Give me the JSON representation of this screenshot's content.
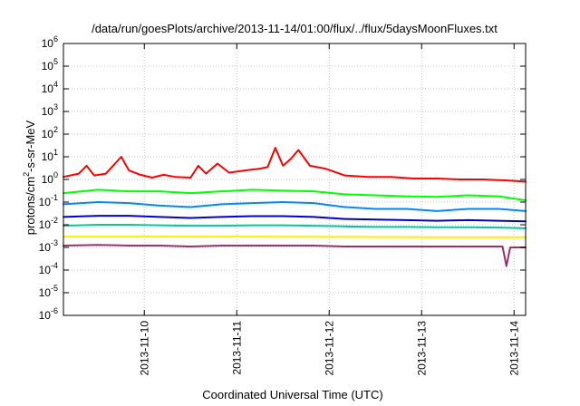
{
  "chart_data": {
    "type": "line",
    "title": "/data/run/goesPlots/archive/2013-11-14/01:00/flux/../flux/5daysMoonFluxes.txt",
    "xlabel": "Coordinated Universal Time (UTC)",
    "ylabel": "protons/cm2-s-sr-MeV",
    "ylabel_parts": {
      "pre": "protons/cm",
      "sup": "2",
      "post": "-s-sr-MeV"
    },
    "yscale": "log",
    "ylim": [
      1e-06,
      1000000.0
    ],
    "xlim": [
      "2013-11-09T03:00",
      "2013-11-14T03:00"
    ],
    "grid": true,
    "x_ticks": [
      {
        "value": "2013-11-10T00:00",
        "label": "2013-11-10"
      },
      {
        "value": "2013-11-11T00:00",
        "label": "2013-11-11"
      },
      {
        "value": "2013-11-12T00:00",
        "label": "2013-11-12"
      },
      {
        "value": "2013-11-13T00:00",
        "label": "2013-11-13"
      },
      {
        "value": "2013-11-14T00:00",
        "label": "2013-11-14"
      }
    ],
    "y_ticks": [
      {
        "value": 1e-06,
        "base": "10",
        "exp": "-6"
      },
      {
        "value": 1e-05,
        "base": "10",
        "exp": "-5"
      },
      {
        "value": 0.0001,
        "base": "10",
        "exp": "-4"
      },
      {
        "value": 0.001,
        "base": "10",
        "exp": "-3"
      },
      {
        "value": 0.01,
        "base": "10",
        "exp": "-2"
      },
      {
        "value": 0.1,
        "base": "10",
        "exp": "-1"
      },
      {
        "value": 1,
        "base": "10",
        "exp": "0"
      },
      {
        "value": 10.0,
        "base": "10",
        "exp": "1"
      },
      {
        "value": 100.0,
        "base": "10",
        "exp": "2"
      },
      {
        "value": 1000.0,
        "base": "10",
        "exp": "3"
      },
      {
        "value": 10000.0,
        "base": "10",
        "exp": "4"
      },
      {
        "value": 100000.0,
        "base": "10",
        "exp": "5"
      },
      {
        "value": 1000000.0,
        "base": "10",
        "exp": "6"
      }
    ],
    "series": [
      {
        "color": "#ff0000",
        "x": [
          "2013-11-09T03:00",
          "2013-11-09T07:00",
          "2013-11-09T09:00",
          "2013-11-09T11:00",
          "2013-11-09T14:00",
          "2013-11-09T18:00",
          "2013-11-09T20:00",
          "2013-11-09T23:00",
          "2013-11-10T02:00",
          "2013-11-10T05:00",
          "2013-11-10T08:00",
          "2013-11-10T12:00",
          "2013-11-10T14:00",
          "2013-11-10T16:00",
          "2013-11-10T19:00",
          "2013-11-10T22:00",
          "2013-11-11T02:00",
          "2013-11-11T06:00",
          "2013-11-11T08:00",
          "2013-11-11T10:00",
          "2013-11-11T12:00",
          "2013-11-11T14:00",
          "2013-11-11T16:00",
          "2013-11-11T19:00",
          "2013-11-11T23:00",
          "2013-11-12T04:00",
          "2013-11-12T10:00",
          "2013-11-12T16:00",
          "2013-11-12T22:00",
          "2013-11-13T04:00",
          "2013-11-13T10:00",
          "2013-11-13T16:00",
          "2013-11-13T22:00",
          "2013-11-14T03:00"
        ],
        "y": [
          1.3,
          1.8,
          4,
          1.5,
          1.8,
          10,
          2.5,
          1.6,
          1.2,
          1.6,
          1.3,
          1.2,
          4,
          1.8,
          5,
          2,
          2.5,
          3,
          3.5,
          25,
          4,
          8,
          20,
          4,
          3,
          1.5,
          1.3,
          1.3,
          1.1,
          1.1,
          1.0,
          1.0,
          0.9,
          0.8
        ]
      },
      {
        "color": "#00ff00",
        "x": [
          "2013-11-09T03:00",
          "2013-11-09T12:00",
          "2013-11-09T20:00",
          "2013-11-10T04:00",
          "2013-11-10T12:00",
          "2013-11-10T20:00",
          "2013-11-11T04:00",
          "2013-11-11T12:00",
          "2013-11-11T20:00",
          "2013-11-12T04:00",
          "2013-11-12T12:00",
          "2013-11-12T20:00",
          "2013-11-13T04:00",
          "2013-11-13T12:00",
          "2013-11-13T20:00",
          "2013-11-14T03:00"
        ],
        "y": [
          0.25,
          0.35,
          0.3,
          0.3,
          0.25,
          0.3,
          0.35,
          0.32,
          0.3,
          0.22,
          0.2,
          0.18,
          0.17,
          0.2,
          0.18,
          0.12
        ]
      },
      {
        "color": "#0088ff",
        "x": [
          "2013-11-09T03:00",
          "2013-11-09T12:00",
          "2013-11-09T20:00",
          "2013-11-10T04:00",
          "2013-11-10T12:00",
          "2013-11-10T20:00",
          "2013-11-11T04:00",
          "2013-11-11T12:00",
          "2013-11-11T20:00",
          "2013-11-12T04:00",
          "2013-11-12T12:00",
          "2013-11-12T20:00",
          "2013-11-13T04:00",
          "2013-11-13T12:00",
          "2013-11-13T20:00",
          "2013-11-14T03:00"
        ],
        "y": [
          0.08,
          0.1,
          0.09,
          0.07,
          0.06,
          0.08,
          0.09,
          0.1,
          0.09,
          0.06,
          0.05,
          0.05,
          0.04,
          0.05,
          0.05,
          0.04
        ]
      },
      {
        "color": "#0000cc",
        "x": [
          "2013-11-09T03:00",
          "2013-11-09T12:00",
          "2013-11-09T20:00",
          "2013-11-10T04:00",
          "2013-11-10T12:00",
          "2013-11-10T20:00",
          "2013-11-11T04:00",
          "2013-11-11T12:00",
          "2013-11-11T20:00",
          "2013-11-12T04:00",
          "2013-11-12T12:00",
          "2013-11-12T20:00",
          "2013-11-13T04:00",
          "2013-11-13T12:00",
          "2013-11-13T20:00",
          "2013-11-14T03:00"
        ],
        "y": [
          0.022,
          0.025,
          0.025,
          0.022,
          0.02,
          0.022,
          0.024,
          0.024,
          0.022,
          0.018,
          0.017,
          0.016,
          0.015,
          0.016,
          0.015,
          0.014
        ]
      },
      {
        "color": "#00c8a0",
        "x": [
          "2013-11-09T03:00",
          "2013-11-09T12:00",
          "2013-11-09T20:00",
          "2013-11-10T04:00",
          "2013-11-10T12:00",
          "2013-11-10T20:00",
          "2013-11-11T04:00",
          "2013-11-11T12:00",
          "2013-11-11T20:00",
          "2013-11-12T04:00",
          "2013-11-12T12:00",
          "2013-11-12T20:00",
          "2013-11-13T04:00",
          "2013-11-13T12:00",
          "2013-11-13T20:00",
          "2013-11-14T03:00"
        ],
        "y": [
          0.009,
          0.01,
          0.01,
          0.0095,
          0.009,
          0.009,
          0.0095,
          0.0095,
          0.009,
          0.0085,
          0.008,
          0.008,
          0.0078,
          0.0078,
          0.0075,
          0.007
        ]
      },
      {
        "color": "#ffee00",
        "x": [
          "2013-11-09T03:00",
          "2013-11-10T03:00",
          "2013-11-11T03:00",
          "2013-11-12T03:00",
          "2013-11-13T03:00",
          "2013-11-14T03:00"
        ],
        "y": [
          0.003,
          0.003,
          0.003,
          0.0029,
          0.0028,
          0.0028
        ]
      },
      {
        "color": "#993366",
        "x": [
          "2013-11-09T03:00",
          "2013-11-09T12:00",
          "2013-11-09T20:00",
          "2013-11-10T04:00",
          "2013-11-10T12:00",
          "2013-11-10T20:00",
          "2013-11-11T04:00",
          "2013-11-11T12:00",
          "2013-11-11T20:00",
          "2013-11-12T04:00",
          "2013-11-12T12:00",
          "2013-11-12T20:00",
          "2013-11-13T04:00",
          "2013-11-13T12:00",
          "2013-11-13T19:00",
          "2013-11-13T21:00",
          "2013-11-13T22:00",
          "2013-11-13T23:00",
          "2013-11-14T01:00",
          "2013-11-14T03:00"
        ],
        "y": [
          0.0012,
          0.0013,
          0.0012,
          0.0012,
          0.0011,
          0.0012,
          0.0012,
          0.0012,
          0.0012,
          0.0011,
          0.0011,
          0.0011,
          0.0011,
          0.0011,
          0.0011,
          0.0011,
          0.00015,
          0.001,
          0.001,
          0.001
        ]
      }
    ]
  }
}
